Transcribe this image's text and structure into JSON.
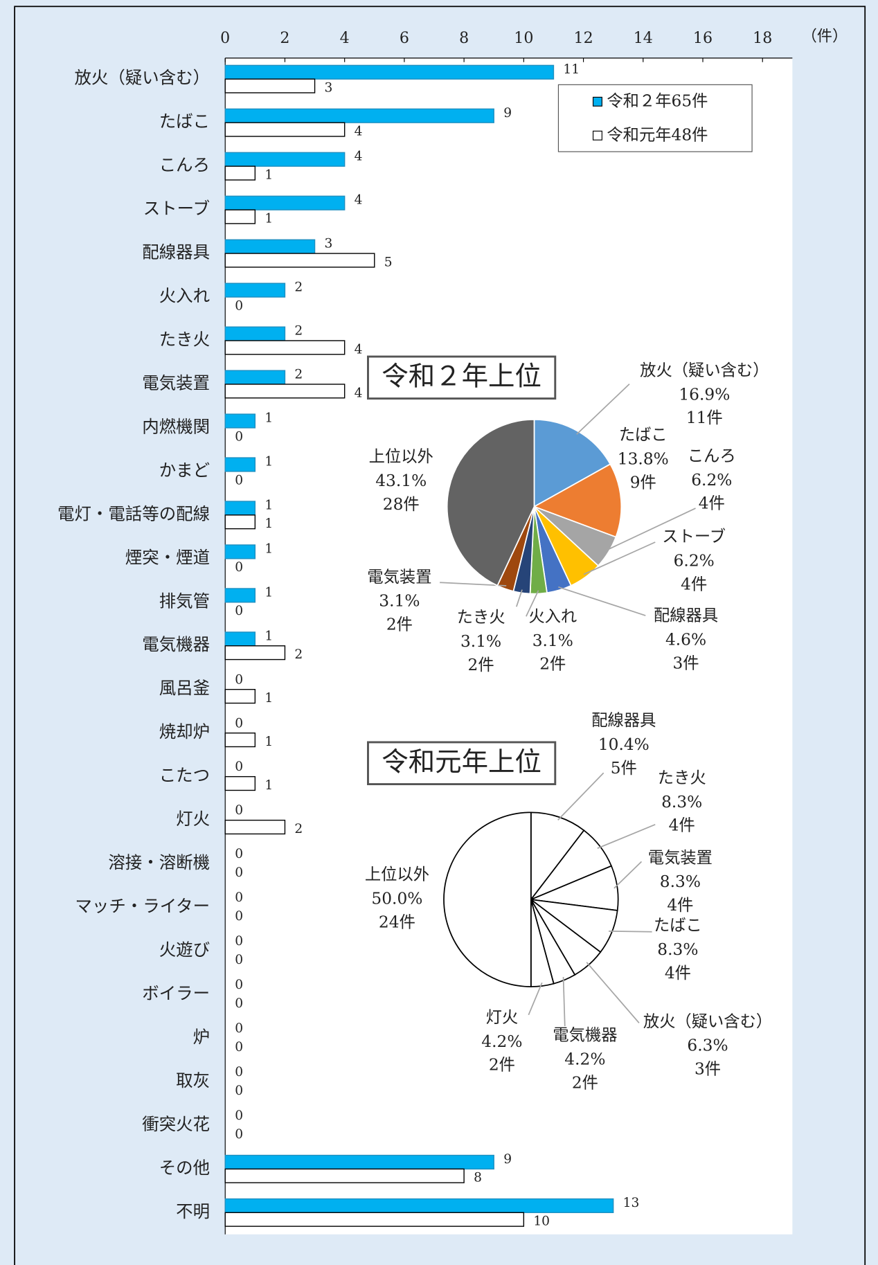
{
  "chart_data": [
    {
      "type": "bar",
      "orientation": "horizontal",
      "categories": [
        "放火（疑い含む）",
        "たばこ",
        "こんろ",
        "ストーブ",
        "配線器具",
        "火入れ",
        "たき火",
        "電気装置",
        "内燃機関",
        "かまど",
        "電灯・電話等の配線",
        "煙突・煙道",
        "排気管",
        "電気機器",
        "風呂釜",
        "焼却炉",
        "こたつ",
        "灯火",
        "溶接・溶断機",
        "マッチ・ライター",
        "火遊び",
        "ボイラー",
        "炉",
        "取灰",
        "衝突火花",
        "その他",
        "不明"
      ],
      "series": [
        {
          "name": "令和２年65件",
          "color": "#00b0f0",
          "values": [
            11,
            9,
            4,
            4,
            3,
            2,
            2,
            2,
            1,
            1,
            1,
            1,
            1,
            1,
            0,
            0,
            0,
            0,
            0,
            0,
            0,
            0,
            0,
            0,
            0,
            9,
            13
          ]
        },
        {
          "name": "令和元年48件",
          "color": "#ffffff",
          "values": [
            3,
            4,
            1,
            1,
            5,
            0,
            4,
            4,
            0,
            0,
            1,
            0,
            0,
            2,
            1,
            1,
            1,
            2,
            0,
            0,
            0,
            0,
            0,
            0,
            0,
            8,
            10
          ]
        }
      ],
      "xlim": [
        0,
        19
      ],
      "xticks": [
        0,
        2,
        4,
        6,
        8,
        10,
        12,
        14,
        16,
        18
      ],
      "x_unit_label": "（件）",
      "legend": "upper right"
    },
    {
      "type": "pie",
      "title": "令和２年上位",
      "categories": [
        "放火（疑い含む）",
        "たばこ",
        "こんろ",
        "ストーブ",
        "配線器具",
        "火入れ",
        "たき火",
        "電気装置",
        "上位以外"
      ],
      "values": [
        16.9,
        13.8,
        6.2,
        6.2,
        4.6,
        3.1,
        3.1,
        3.1,
        43.1
      ],
      "value_labels": [
        "16.9%",
        "13.8%",
        "6.2%",
        "6.2%",
        "4.6%",
        "3.1%",
        "3.1%",
        "3.1%",
        "43.1%"
      ],
      "counts": [
        11,
        9,
        4,
        4,
        3,
        2,
        2,
        2,
        28
      ],
      "count_labels": [
        "11件",
        "9件",
        "4件",
        "4件",
        "3件",
        "2件",
        "2件",
        "2件",
        "28件"
      ],
      "colors": [
        "#5b9bd5",
        "#ed7d31",
        "#a5a5a5",
        "#ffc000",
        "#4472c4",
        "#70ad47",
        "#264478",
        "#9e480e",
        "#636363"
      ]
    },
    {
      "type": "pie",
      "title": "令和元年上位",
      "categories": [
        "配線器具",
        "たき火",
        "電気装置",
        "たばこ",
        "放火（疑い含む）",
        "電気機器",
        "灯火",
        "上位以外"
      ],
      "values": [
        10.4,
        8.3,
        8.3,
        8.3,
        6.3,
        4.2,
        4.2,
        50
      ],
      "value_labels": [
        "10.4%",
        "8.3%",
        "8.3%",
        "8.3%",
        "6.3%",
        "4.2%",
        "4.2%",
        "50.0%"
      ],
      "counts": [
        5,
        4,
        4,
        4,
        3,
        2,
        2,
        24
      ],
      "count_labels": [
        "5件",
        "4件",
        "4件",
        "4件",
        "3件",
        "2件",
        "2件",
        "24件"
      ],
      "colors": [
        "#ffffff",
        "#ffffff",
        "#ffffff",
        "#ffffff",
        "#ffffff",
        "#ffffff",
        "#ffffff",
        "#ffffff"
      ]
    }
  ]
}
